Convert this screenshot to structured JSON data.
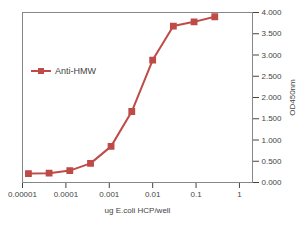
{
  "chart_data": {
    "type": "line",
    "x_label": "ug E.coli HCP/well",
    "y_label": "OD450nm",
    "x": [
      1.37e-05,
      4.1e-05,
      0.000123,
      0.00037,
      0.0011,
      0.0033,
      0.01,
      0.03,
      0.09,
      0.27
    ],
    "series": [
      {
        "name": "Anti-HMW",
        "color": "#be4b48",
        "marker": "square",
        "values": [
          0.21,
          0.22,
          0.28,
          0.45,
          0.85,
          1.67,
          2.88,
          3.68,
          3.78,
          3.9
        ]
      }
    ],
    "log": "x",
    "xlim": [
      1e-05,
      2
    ],
    "xticks": [
      1e-05,
      0.0001,
      0.001,
      0.01,
      0.1,
      1
    ],
    "ylim": [
      0,
      4
    ],
    "yticks": [
      {
        "value": 0,
        "label": "0.000"
      },
      {
        "value": 0.5,
        "label": "0.500"
      },
      {
        "value": 1,
        "label": "1.000"
      },
      {
        "value": 1.5,
        "label": "1.500"
      },
      {
        "value": 2,
        "label": "2.000"
      },
      {
        "value": 2.5,
        "label": "2.500"
      },
      {
        "value": 3,
        "label": "3.000"
      },
      {
        "value": 3.5,
        "label": "3.500"
      },
      {
        "value": 4,
        "label": "4.000"
      }
    ],
    "grid": false,
    "legend": "top-left"
  }
}
